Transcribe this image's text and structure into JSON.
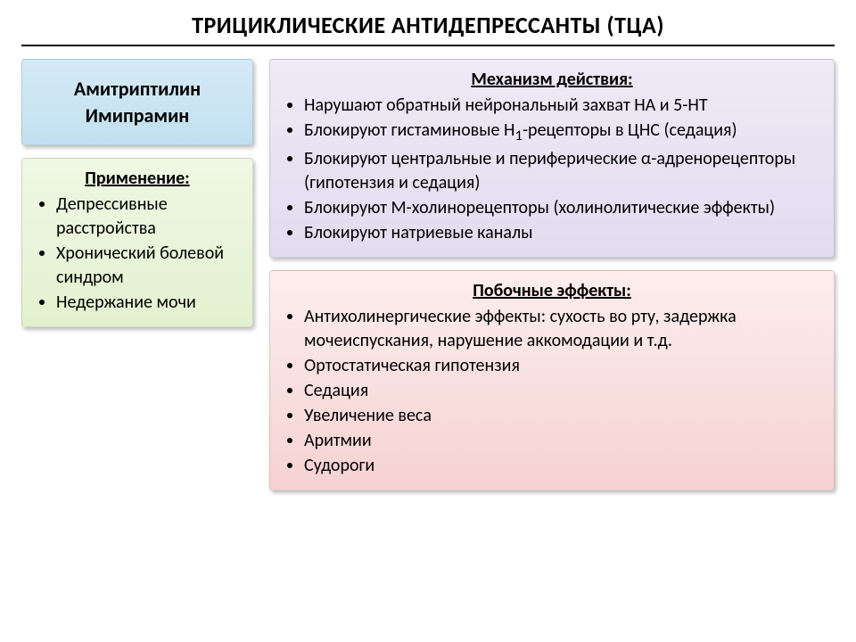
{
  "page_title": "ТРИЦИКЛИЧЕСКИЕ АНТИДЕПРЕССАНТЫ (ТЦА)",
  "drugs": {
    "line1": "Амитриптилин",
    "line2": "Имипрамин",
    "bg_gradient": [
      "#d5eaf5",
      "#c2e0f0"
    ]
  },
  "uses": {
    "title": "Применение:",
    "items": [
      "Депрессивные расстройства",
      "Хронический болевой синдром",
      "Недержание мочи"
    ],
    "bg_gradient": [
      "#eff8e3",
      "#e3f1d0"
    ]
  },
  "mechanism": {
    "title": "Механизм действия:",
    "items": [
      "Нарушают обратный нейрональный захват НА и 5-НТ",
      "Блокируют гистаминовые H<sub>1</sub>-рецепторы в ЦНС (седация)",
      "Блокируют центральные и периферические α-адренорецепторы (гипотензия и седация)",
      "Блокируют М-холинорецепторы (холинолитические эффекты)",
      "Блокируют натриевые каналы"
    ],
    "bg_gradient": [
      "#eeeaf6",
      "#e2dcf0"
    ]
  },
  "side_effects": {
    "title": "Побочные эффекты:",
    "items": [
      "Антихолинергические эффекты: сухость во рту, задержка мочеиспускания, нарушение аккомодации и т.д.",
      "Ортостатическая гипотензия",
      "Седация",
      "Увеличение веса",
      "Аритмии",
      "Судороги"
    ],
    "bg_gradient": [
      "#fdeeee",
      "#f6d2d2"
    ]
  },
  "style": {
    "title_fontsize": 26,
    "box_title_fontsize": 20,
    "item_fontsize": 20,
    "text_color": "#000000",
    "background_color": "#ffffff",
    "shadow_color": "rgba(0,0,0,0.25)",
    "border_radius": 4
  }
}
